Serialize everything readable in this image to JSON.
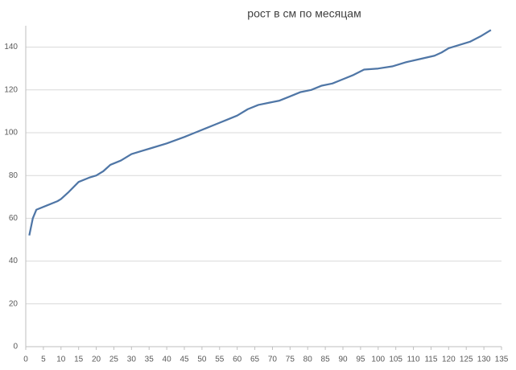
{
  "chart_data": {
    "type": "line",
    "title": "рост в см по месяцам",
    "x": [
      1,
      2,
      3,
      6,
      9,
      10,
      12,
      15,
      18,
      20,
      22,
      24,
      27,
      30,
      33,
      36,
      40,
      45,
      48,
      51,
      54,
      57,
      60,
      63,
      66,
      69,
      72,
      75,
      78,
      81,
      84,
      87,
      90,
      93,
      96,
      100,
      104,
      108,
      112,
      116,
      118,
      120,
      123,
      126,
      129,
      132
    ],
    "series": [
      {
        "name": "рост",
        "color": "#4f76a6",
        "values": [
          52,
          60,
          64,
          66,
          68,
          69,
          72,
          77,
          79,
          80,
          82,
          85,
          87,
          90,
          91.5,
          93,
          95,
          98,
          100,
          102,
          104,
          106,
          108,
          111,
          113,
          114,
          115,
          117,
          119,
          120,
          122,
          123,
          125,
          127,
          129.5,
          130,
          131,
          133,
          134.5,
          136,
          137.5,
          139.5,
          141,
          142.5,
          145,
          148
        ]
      }
    ],
    "xlim": [
      0,
      135
    ],
    "xticks": [
      0,
      5,
      10,
      15,
      20,
      25,
      30,
      35,
      40,
      45,
      50,
      55,
      60,
      65,
      70,
      75,
      80,
      85,
      90,
      95,
      100,
      105,
      110,
      115,
      120,
      125,
      130,
      135
    ],
    "ylim": [
      0,
      150
    ],
    "yticks": [
      0,
      20,
      40,
      60,
      80,
      100,
      120,
      140
    ],
    "grid": true
  }
}
